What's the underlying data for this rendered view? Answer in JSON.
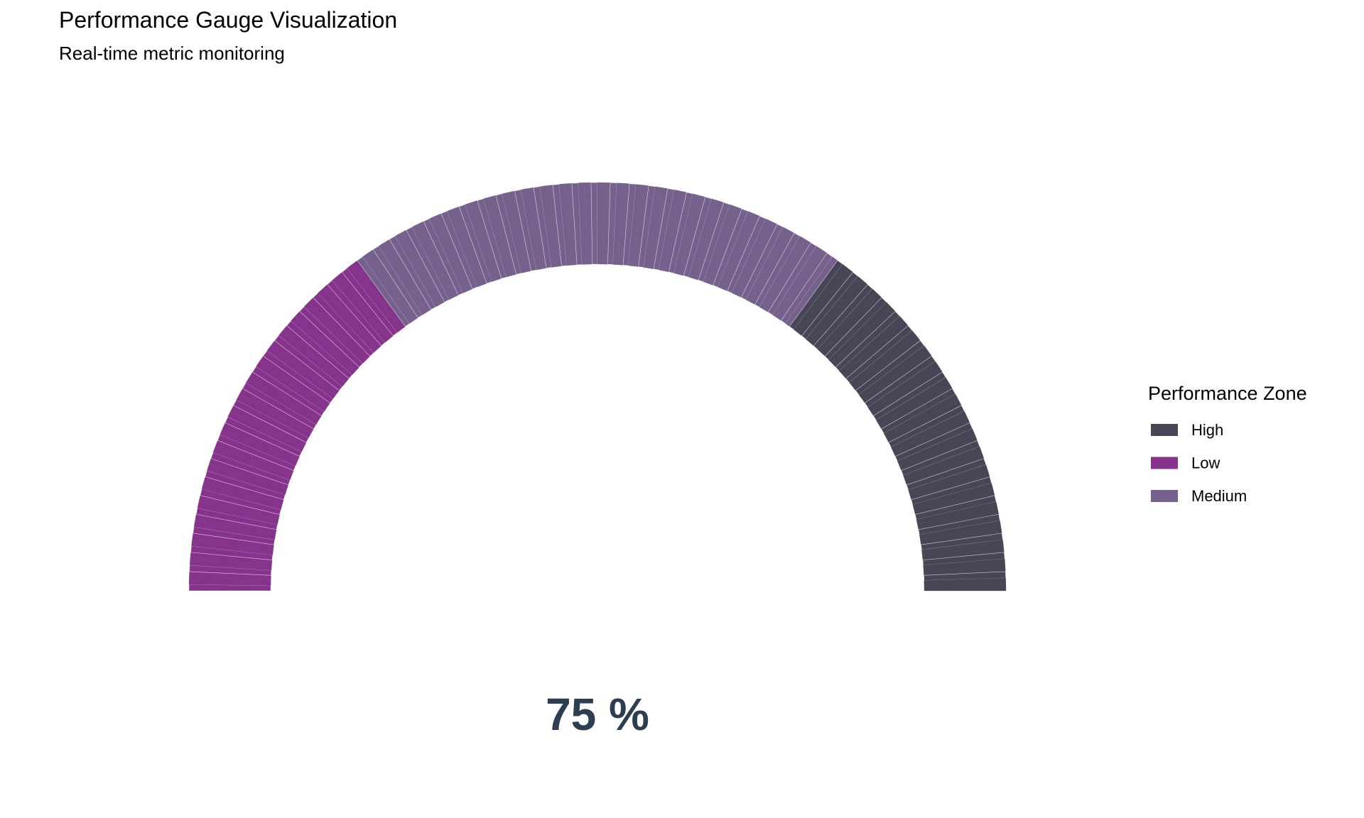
{
  "chart_data": {
    "type": "gauge",
    "title": "Performance Gauge Visualization",
    "subtitle": "Real-time metric monitoring",
    "value": 75,
    "value_label": "75 %",
    "range": [
      0,
      100
    ],
    "zones": [
      {
        "name": "Low",
        "from": 0,
        "to": 30,
        "color": "#86348b"
      },
      {
        "name": "Medium",
        "from": 30,
        "to": 70,
        "color": "#76618d"
      },
      {
        "name": "High",
        "from": 70,
        "to": 100,
        "color": "#474657"
      }
    ],
    "legend": {
      "title": "Performance Zone",
      "placement": "right",
      "entries": [
        {
          "label": "High",
          "color": "#474657"
        },
        {
          "label": "Low",
          "color": "#86348b"
        },
        {
          "label": "Medium",
          "color": "#76618d"
        }
      ]
    }
  }
}
